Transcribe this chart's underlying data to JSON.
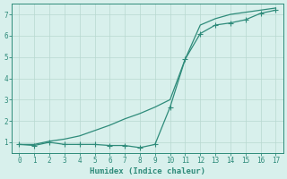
{
  "xlabel": "Humidex (Indice chaleur)",
  "color": "#2e8b7a",
  "bg_color": "#d8f0ec",
  "grid_color": "#b8d8d0",
  "ylim": [
    0.5,
    7.5
  ],
  "xlim": [
    -0.5,
    17.5
  ],
  "yticks": [
    1,
    2,
    3,
    4,
    5,
    6,
    7
  ],
  "xticks": [
    0,
    1,
    2,
    3,
    4,
    5,
    6,
    7,
    8,
    9,
    10,
    11,
    12,
    13,
    14,
    15,
    16,
    17
  ],
  "line1_x": [
    0,
    1,
    2,
    3,
    4,
    5,
    6,
    7,
    8,
    9,
    10,
    11,
    12,
    13,
    14,
    15,
    16,
    17
  ],
  "line1_y": [
    0.9,
    0.85,
    1.0,
    0.9,
    0.9,
    0.9,
    0.85,
    0.85,
    0.75,
    0.9,
    2.65,
    4.9,
    6.1,
    6.5,
    6.6,
    6.75,
    7.05,
    7.2
  ],
  "line2_x": [
    0,
    1,
    2,
    3,
    4,
    5,
    6,
    7,
    8,
    9,
    10,
    11,
    12,
    13,
    14,
    15,
    16,
    17
  ],
  "line2_y": [
    0.9,
    0.9,
    1.05,
    1.15,
    1.3,
    1.55,
    1.8,
    2.1,
    2.35,
    2.65,
    3.0,
    4.9,
    6.5,
    6.8,
    7.0,
    7.1,
    7.2,
    7.3
  ]
}
